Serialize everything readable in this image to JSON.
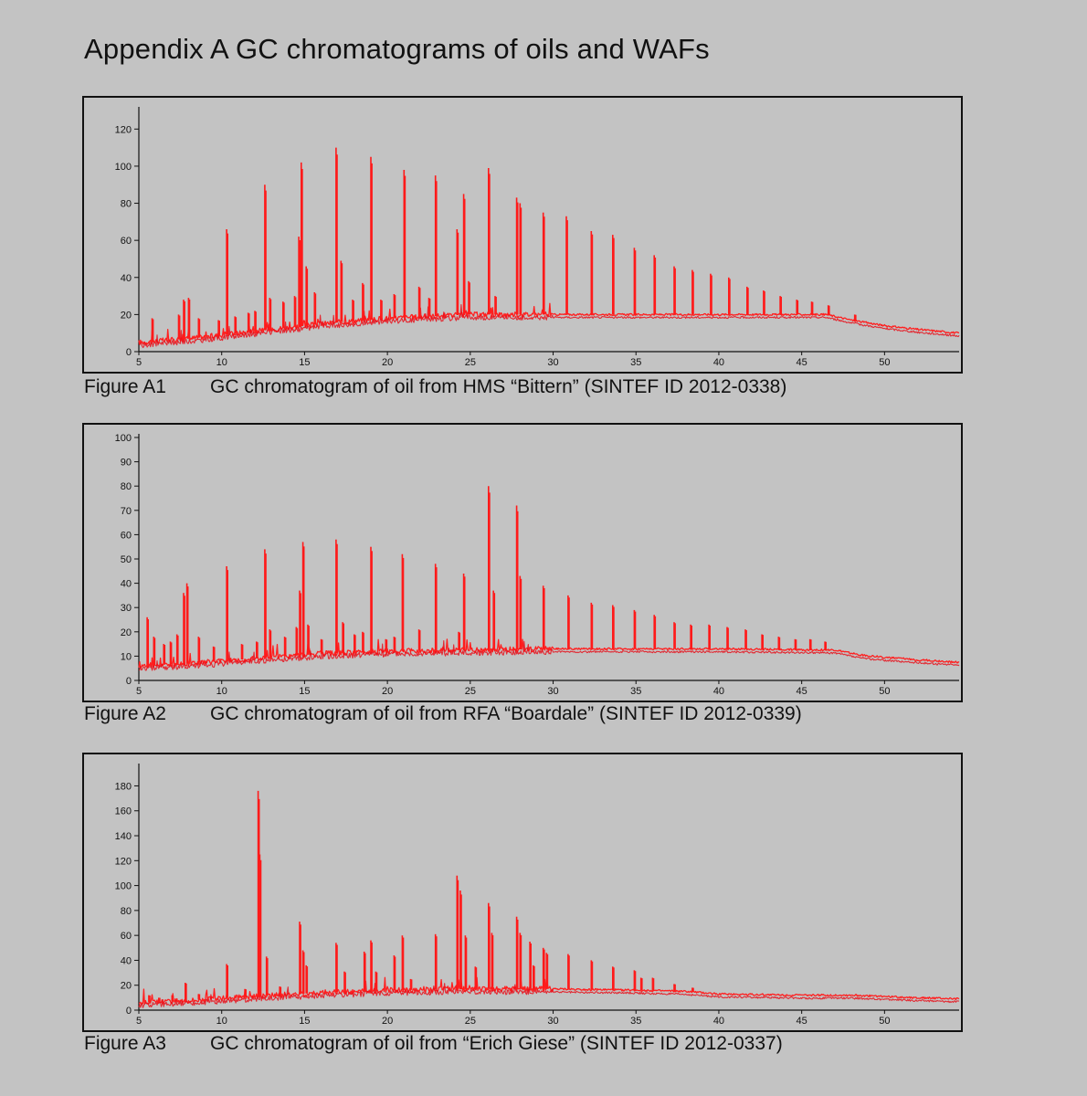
{
  "page": {
    "title": "Appendix A GC chromatograms of oils and WAFs"
  },
  "colors": {
    "background": "#c3c3c3",
    "trace": "#ff1f1f",
    "axis": "#111111"
  },
  "chart_data": [
    {
      "type": "line",
      "id": "A1",
      "caption_label": "Figure A1",
      "caption_text": "GC chromatogram of oil from HMS “Bittern” (SINTEF ID 2012-0338)",
      "xlabel": "",
      "ylabel": "",
      "xlim": [
        5,
        54.5
      ],
      "ylim": [
        0,
        130
      ],
      "x_ticks": [
        5,
        10,
        15,
        20,
        25,
        30,
        35,
        40,
        45,
        50
      ],
      "y_ticks": [
        0,
        20,
        40,
        60,
        80,
        100,
        120
      ],
      "baseline": [
        [
          5,
          5
        ],
        [
          8,
          7
        ],
        [
          12,
          11
        ],
        [
          16,
          15
        ],
        [
          20,
          18
        ],
        [
          25,
          20
        ],
        [
          30,
          20
        ],
        [
          35,
          20
        ],
        [
          40,
          20
        ],
        [
          46.5,
          20
        ],
        [
          48,
          17
        ],
        [
          50,
          14
        ],
        [
          52,
          12
        ],
        [
          54.5,
          10
        ]
      ],
      "peaks": [
        {
          "rt": 5.8,
          "h": 18
        },
        {
          "rt": 7.4,
          "h": 20
        },
        {
          "rt": 7.7,
          "h": 28
        },
        {
          "rt": 8.0,
          "h": 29
        },
        {
          "rt": 8.6,
          "h": 18
        },
        {
          "rt": 9.8,
          "h": 17
        },
        {
          "rt": 10.3,
          "h": 66
        },
        {
          "rt": 10.8,
          "h": 19
        },
        {
          "rt": 11.6,
          "h": 21
        },
        {
          "rt": 12.0,
          "h": 22
        },
        {
          "rt": 12.6,
          "h": 90
        },
        {
          "rt": 12.9,
          "h": 29
        },
        {
          "rt": 13.7,
          "h": 27
        },
        {
          "rt": 14.4,
          "h": 30
        },
        {
          "rt": 14.8,
          "h": 102
        },
        {
          "rt": 14.65,
          "h": 62
        },
        {
          "rt": 15.1,
          "h": 46
        },
        {
          "rt": 15.6,
          "h": 32
        },
        {
          "rt": 16.9,
          "h": 110
        },
        {
          "rt": 17.2,
          "h": 49
        },
        {
          "rt": 17.9,
          "h": 28
        },
        {
          "rt": 18.5,
          "h": 37
        },
        {
          "rt": 19.0,
          "h": 105
        },
        {
          "rt": 19.6,
          "h": 28
        },
        {
          "rt": 20.4,
          "h": 31
        },
        {
          "rt": 21.0,
          "h": 98
        },
        {
          "rt": 21.9,
          "h": 35
        },
        {
          "rt": 22.5,
          "h": 29
        },
        {
          "rt": 22.9,
          "h": 95
        },
        {
          "rt": 24.2,
          "h": 66
        },
        {
          "rt": 24.6,
          "h": 85
        },
        {
          "rt": 24.9,
          "h": 38
        },
        {
          "rt": 26.1,
          "h": 99
        },
        {
          "rt": 26.5,
          "h": 30
        },
        {
          "rt": 27.8,
          "h": 83
        },
        {
          "rt": 28.0,
          "h": 80
        },
        {
          "rt": 29.4,
          "h": 75
        },
        {
          "rt": 30.8,
          "h": 73
        },
        {
          "rt": 32.3,
          "h": 65
        },
        {
          "rt": 33.6,
          "h": 63
        },
        {
          "rt": 34.9,
          "h": 56
        },
        {
          "rt": 36.1,
          "h": 52
        },
        {
          "rt": 37.3,
          "h": 46
        },
        {
          "rt": 38.4,
          "h": 44
        },
        {
          "rt": 39.5,
          "h": 42
        },
        {
          "rt": 40.6,
          "h": 40
        },
        {
          "rt": 41.7,
          "h": 35
        },
        {
          "rt": 42.7,
          "h": 33
        },
        {
          "rt": 43.7,
          "h": 30
        },
        {
          "rt": 44.7,
          "h": 28
        },
        {
          "rt": 45.6,
          "h": 27
        },
        {
          "rt": 46.6,
          "h": 25
        },
        {
          "rt": 48.2,
          "h": 20
        }
      ]
    },
    {
      "type": "line",
      "id": "A2",
      "caption_label": "Figure A2",
      "caption_text": "GC chromatogram of oil from RFA “Boardale” (SINTEF ID 2012-0339)",
      "xlabel": "",
      "ylabel": "",
      "xlim": [
        5,
        54.5
      ],
      "ylim": [
        0,
        100
      ],
      "x_ticks": [
        5,
        10,
        15,
        20,
        25,
        30,
        35,
        40,
        45,
        50
      ],
      "y_ticks": [
        0,
        10,
        20,
        30,
        40,
        50,
        60,
        70,
        80,
        90,
        100
      ],
      "baseline": [
        [
          5,
          6
        ],
        [
          8,
          7
        ],
        [
          12,
          9
        ],
        [
          16,
          11
        ],
        [
          20,
          12
        ],
        [
          25,
          12.5
        ],
        [
          30,
          13
        ],
        [
          35,
          13
        ],
        [
          40,
          13
        ],
        [
          47,
          12.5
        ],
        [
          48.5,
          10.5
        ],
        [
          50,
          9.5
        ],
        [
          52,
          8.5
        ],
        [
          54.5,
          7.5
        ]
      ],
      "peaks": [
        {
          "rt": 5.5,
          "h": 26
        },
        {
          "rt": 5.9,
          "h": 18
        },
        {
          "rt": 6.5,
          "h": 15
        },
        {
          "rt": 6.9,
          "h": 16
        },
        {
          "rt": 7.3,
          "h": 19
        },
        {
          "rt": 7.7,
          "h": 36
        },
        {
          "rt": 7.9,
          "h": 40
        },
        {
          "rt": 8.6,
          "h": 18
        },
        {
          "rt": 9.5,
          "h": 14
        },
        {
          "rt": 10.3,
          "h": 47
        },
        {
          "rt": 11.2,
          "h": 15
        },
        {
          "rt": 12.1,
          "h": 16
        },
        {
          "rt": 12.6,
          "h": 54
        },
        {
          "rt": 12.9,
          "h": 21
        },
        {
          "rt": 13.8,
          "h": 18
        },
        {
          "rt": 14.5,
          "h": 22
        },
        {
          "rt": 14.9,
          "h": 57
        },
        {
          "rt": 14.7,
          "h": 37
        },
        {
          "rt": 15.2,
          "h": 23
        },
        {
          "rt": 16.0,
          "h": 17
        },
        {
          "rt": 16.9,
          "h": 58
        },
        {
          "rt": 17.3,
          "h": 24
        },
        {
          "rt": 18.0,
          "h": 19
        },
        {
          "rt": 18.5,
          "h": 20
        },
        {
          "rt": 19.0,
          "h": 55
        },
        {
          "rt": 19.9,
          "h": 17
        },
        {
          "rt": 20.4,
          "h": 18
        },
        {
          "rt": 20.9,
          "h": 52
        },
        {
          "rt": 21.9,
          "h": 21
        },
        {
          "rt": 22.9,
          "h": 48
        },
        {
          "rt": 24.6,
          "h": 44
        },
        {
          "rt": 24.3,
          "h": 20
        },
        {
          "rt": 26.1,
          "h": 80
        },
        {
          "rt": 26.4,
          "h": 37
        },
        {
          "rt": 27.8,
          "h": 72
        },
        {
          "rt": 28.0,
          "h": 43
        },
        {
          "rt": 29.4,
          "h": 39
        },
        {
          "rt": 30.9,
          "h": 35
        },
        {
          "rt": 32.3,
          "h": 32
        },
        {
          "rt": 33.6,
          "h": 31
        },
        {
          "rt": 34.9,
          "h": 29
        },
        {
          "rt": 36.1,
          "h": 27
        },
        {
          "rt": 37.3,
          "h": 24
        },
        {
          "rt": 38.3,
          "h": 23
        },
        {
          "rt": 39.4,
          "h": 23
        },
        {
          "rt": 40.5,
          "h": 22
        },
        {
          "rt": 41.6,
          "h": 21
        },
        {
          "rt": 42.6,
          "h": 19
        },
        {
          "rt": 43.6,
          "h": 18
        },
        {
          "rt": 44.6,
          "h": 17
        },
        {
          "rt": 45.5,
          "h": 17
        },
        {
          "rt": 46.4,
          "h": 16
        }
      ]
    },
    {
      "type": "line",
      "id": "A3",
      "caption_label": "Figure A3",
      "caption_text": "GC chromatogram of oil from “Erich Giese” (SINTEF ID 2012-0337)",
      "xlabel": "",
      "ylabel": "",
      "xlim": [
        5,
        54.5
      ],
      "ylim": [
        0,
        195
      ],
      "x_ticks": [
        5,
        10,
        15,
        20,
        25,
        30,
        35,
        40,
        45,
        50
      ],
      "y_ticks": [
        0,
        20,
        40,
        60,
        80,
        100,
        120,
        140,
        160,
        180
      ],
      "baseline": [
        [
          5,
          6
        ],
        [
          8,
          8
        ],
        [
          12,
          11
        ],
        [
          16,
          14
        ],
        [
          20,
          16
        ],
        [
          25,
          17
        ],
        [
          30,
          17
        ],
        [
          35,
          16
        ],
        [
          38,
          15
        ],
        [
          40,
          13
        ],
        [
          45,
          12
        ],
        [
          48,
          12
        ],
        [
          50,
          11
        ],
        [
          52,
          10
        ],
        [
          54.5,
          9
        ]
      ],
      "peaks": [
        {
          "rt": 5.6,
          "h": 12
        },
        {
          "rt": 6.2,
          "h": 10
        },
        {
          "rt": 7.0,
          "h": 12
        },
        {
          "rt": 7.8,
          "h": 22
        },
        {
          "rt": 8.6,
          "h": 13
        },
        {
          "rt": 10.3,
          "h": 37
        },
        {
          "rt": 11.4,
          "h": 17
        },
        {
          "rt": 12.2,
          "h": 176
        },
        {
          "rt": 12.3,
          "h": 125
        },
        {
          "rt": 12.7,
          "h": 43
        },
        {
          "rt": 13.5,
          "h": 19
        },
        {
          "rt": 14.7,
          "h": 71
        },
        {
          "rt": 14.9,
          "h": 48
        },
        {
          "rt": 15.1,
          "h": 36
        },
        {
          "rt": 16.9,
          "h": 54
        },
        {
          "rt": 17.4,
          "h": 31
        },
        {
          "rt": 18.6,
          "h": 47
        },
        {
          "rt": 19.0,
          "h": 56
        },
        {
          "rt": 19.3,
          "h": 31
        },
        {
          "rt": 20.4,
          "h": 44
        },
        {
          "rt": 20.9,
          "h": 60
        },
        {
          "rt": 21.4,
          "h": 25
        },
        {
          "rt": 22.9,
          "h": 61
        },
        {
          "rt": 24.2,
          "h": 108
        },
        {
          "rt": 24.4,
          "h": 96
        },
        {
          "rt": 24.7,
          "h": 60
        },
        {
          "rt": 25.3,
          "h": 35
        },
        {
          "rt": 26.1,
          "h": 86
        },
        {
          "rt": 26.3,
          "h": 62
        },
        {
          "rt": 27.8,
          "h": 75
        },
        {
          "rt": 28.0,
          "h": 62
        },
        {
          "rt": 28.6,
          "h": 55
        },
        {
          "rt": 28.8,
          "h": 36
        },
        {
          "rt": 29.4,
          "h": 50
        },
        {
          "rt": 29.6,
          "h": 46
        },
        {
          "rt": 30.9,
          "h": 45
        },
        {
          "rt": 32.3,
          "h": 40
        },
        {
          "rt": 33.6,
          "h": 35
        },
        {
          "rt": 34.9,
          "h": 32
        },
        {
          "rt": 35.3,
          "h": 26
        },
        {
          "rt": 36.0,
          "h": 26
        },
        {
          "rt": 37.3,
          "h": 21
        },
        {
          "rt": 38.4,
          "h": 18
        }
      ]
    }
  ]
}
